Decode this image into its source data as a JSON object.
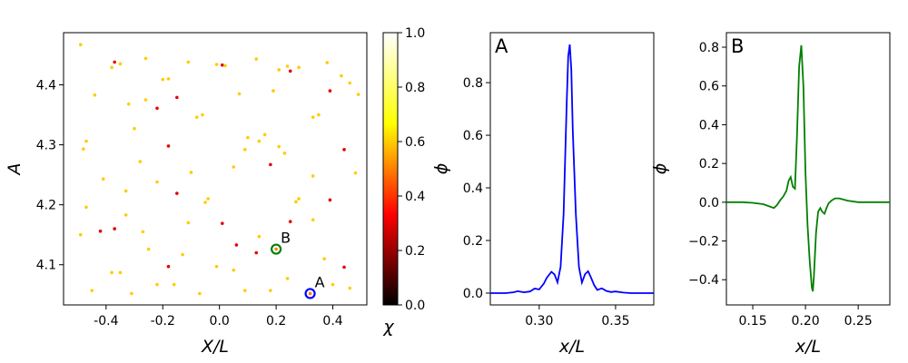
{
  "chart_data": [
    {
      "type": "scatter",
      "xlabel": "X/L",
      "ylabel": "A",
      "xlim": [
        -0.55,
        0.52
      ],
      "ylim": [
        4.033,
        4.487
      ],
      "xticks": [
        "-0.4",
        "-0.2",
        "0.0",
        "0.2",
        "0.4"
      ],
      "xtick_values": [
        -0.4,
        -0.2,
        0.0,
        0.2,
        0.4
      ],
      "yticks": [
        "4.1",
        "4.2",
        "4.3",
        "4.4"
      ],
      "ytick_values": [
        4.1,
        4.2,
        4.3,
        4.4
      ],
      "colorbar": {
        "label": "χ",
        "range": [
          0.0,
          1.0
        ],
        "ticks": [
          "0.0",
          "0.2",
          "0.4",
          "0.6",
          "0.8",
          "1.0"
        ],
        "tick_values": [
          0.0,
          0.2,
          0.4,
          0.6,
          0.8,
          1.0
        ],
        "colormap": "hot",
        "stops": [
          "#000000",
          "#ff0000",
          "#ffff00",
          "#ffffff"
        ]
      },
      "points": [
        [
          -0.49,
          4.467,
          0.6
        ],
        [
          -0.38,
          4.429,
          0.6
        ],
        [
          -0.37,
          4.438,
          0.3
        ],
        [
          -0.35,
          4.435,
          0.6
        ],
        [
          -0.26,
          4.444,
          0.6
        ],
        [
          -0.2,
          4.409,
          0.6
        ],
        [
          -0.18,
          4.41,
          0.6
        ],
        [
          -0.15,
          4.379,
          0.3
        ],
        [
          -0.11,
          4.438,
          0.6
        ],
        [
          -0.01,
          4.434,
          0.6
        ],
        [
          0.01,
          4.433,
          0.3
        ],
        [
          0.02,
          4.432,
          0.6
        ],
        [
          0.13,
          4.443,
          0.6
        ],
        [
          0.21,
          4.425,
          0.6
        ],
        [
          0.24,
          4.431,
          0.6
        ],
        [
          0.25,
          4.423,
          0.3
        ],
        [
          0.28,
          4.429,
          0.6
        ],
        [
          0.38,
          4.437,
          0.6
        ],
        [
          0.43,
          4.415,
          0.6
        ],
        [
          0.46,
          4.403,
          0.6
        ],
        [
          0.49,
          4.384,
          0.6
        ],
        [
          -0.44,
          4.383,
          0.6
        ],
        [
          -0.32,
          4.368,
          0.6
        ],
        [
          -0.26,
          4.375,
          0.6
        ],
        [
          -0.22,
          4.361,
          0.3
        ],
        [
          -0.08,
          4.346,
          0.6
        ],
        [
          -0.06,
          4.35,
          0.6
        ],
        [
          0.07,
          4.385,
          0.6
        ],
        [
          0.19,
          4.39,
          0.6
        ],
        [
          0.33,
          4.346,
          0.6
        ],
        [
          0.35,
          4.35,
          0.6
        ],
        [
          0.39,
          4.39,
          0.3
        ],
        [
          -0.3,
          4.327,
          0.6
        ],
        [
          -0.47,
          4.306,
          0.6
        ],
        [
          -0.48,
          4.293,
          0.6
        ],
        [
          -0.18,
          4.298,
          0.3
        ],
        [
          0.1,
          4.312,
          0.6
        ],
        [
          0.14,
          4.306,
          0.6
        ],
        [
          0.16,
          4.317,
          0.6
        ],
        [
          0.09,
          4.292,
          0.6
        ],
        [
          0.21,
          4.297,
          0.6
        ],
        [
          0.23,
          4.286,
          0.6
        ],
        [
          0.44,
          4.292,
          0.3
        ],
        [
          -0.28,
          4.272,
          0.6
        ],
        [
          0.05,
          4.263,
          0.6
        ],
        [
          0.18,
          4.267,
          0.3
        ],
        [
          0.48,
          4.253,
          0.6
        ],
        [
          -0.1,
          4.254,
          0.6
        ],
        [
          -0.41,
          4.243,
          0.6
        ],
        [
          -0.22,
          4.238,
          0.6
        ],
        [
          0.33,
          4.248,
          0.6
        ],
        [
          -0.33,
          4.223,
          0.6
        ],
        [
          -0.15,
          4.219,
          0.3
        ],
        [
          -0.04,
          4.21,
          0.6
        ],
        [
          -0.05,
          4.204,
          0.6
        ],
        [
          0.27,
          4.205,
          0.6
        ],
        [
          0.28,
          4.21,
          0.6
        ],
        [
          0.39,
          4.208,
          0.3
        ],
        [
          -0.47,
          4.196,
          0.6
        ],
        [
          -0.33,
          4.183,
          0.6
        ],
        [
          -0.11,
          4.17,
          0.6
        ],
        [
          0.01,
          4.169,
          0.3
        ],
        [
          0.25,
          4.172,
          0.3
        ],
        [
          0.33,
          4.175,
          0.6
        ],
        [
          -0.37,
          4.16,
          0.3
        ],
        [
          -0.42,
          4.156,
          0.3
        ],
        [
          -0.49,
          4.15,
          0.6
        ],
        [
          -0.27,
          4.155,
          0.6
        ],
        [
          0.06,
          4.133,
          0.3
        ],
        [
          0.14,
          4.147,
          0.6
        ],
        [
          -0.25,
          4.126,
          0.6
        ],
        [
          -0.13,
          4.117,
          0.6
        ],
        [
          0.13,
          4.12,
          0.3
        ],
        [
          0.37,
          4.11,
          0.6
        ],
        [
          -0.38,
          4.087,
          0.6
        ],
        [
          -0.35,
          4.087,
          0.6
        ],
        [
          -0.18,
          4.097,
          0.3
        ],
        [
          -0.01,
          4.097,
          0.6
        ],
        [
          0.05,
          4.091,
          0.6
        ],
        [
          0.44,
          4.096,
          0.3
        ],
        [
          -0.22,
          4.067,
          0.6
        ],
        [
          -0.16,
          4.067,
          0.6
        ],
        [
          -0.07,
          4.052,
          0.6
        ],
        [
          0.09,
          4.057,
          0.6
        ],
        [
          0.18,
          4.057,
          0.6
        ],
        [
          0.24,
          4.077,
          0.6
        ],
        [
          0.4,
          4.067,
          0.6
        ],
        [
          0.46,
          4.061,
          0.6
        ],
        [
          -0.45,
          4.057,
          0.6
        ],
        [
          -0.31,
          4.052,
          0.6
        ]
      ],
      "highlights": [
        {
          "label": "A",
          "x": 0.32,
          "y": 4.052,
          "color": "#0000ff"
        },
        {
          "label": "B",
          "x": 0.2,
          "y": 4.126,
          "color": "#008000"
        }
      ]
    },
    {
      "type": "line",
      "panel_label": "A",
      "xlabel": "x/L",
      "ylabel": "ϕ",
      "xlim": [
        0.268,
        0.375
      ],
      "ylim": [
        -0.045,
        0.99
      ],
      "xticks": [
        "0.30",
        "0.35"
      ],
      "xtick_values": [
        0.3,
        0.35
      ],
      "yticks": [
        "0.0",
        "0.2",
        "0.4",
        "0.6",
        "0.8"
      ],
      "ytick_values": [
        0.0,
        0.2,
        0.4,
        0.6,
        0.8
      ],
      "color": "#0000ff",
      "x": [
        0.268,
        0.278,
        0.283,
        0.286,
        0.29,
        0.294,
        0.297,
        0.3,
        0.303,
        0.305,
        0.308,
        0.31,
        0.312,
        0.314,
        0.316,
        0.318,
        0.319,
        0.32,
        0.321,
        0.322,
        0.324,
        0.326,
        0.328,
        0.33,
        0.332,
        0.334,
        0.336,
        0.338,
        0.341,
        0.344,
        0.347,
        0.35,
        0.355,
        0.36,
        0.375
      ],
      "y": [
        0.0,
        0.0,
        0.003,
        0.007,
        0.003,
        0.006,
        0.017,
        0.014,
        0.036,
        0.058,
        0.081,
        0.071,
        0.041,
        0.1,
        0.3,
        0.72,
        0.9,
        0.945,
        0.85,
        0.62,
        0.3,
        0.1,
        0.04,
        0.072,
        0.083,
        0.058,
        0.03,
        0.012,
        0.018,
        0.008,
        0.004,
        0.006,
        0.002,
        0.0,
        0.0
      ]
    },
    {
      "type": "line",
      "panel_label": "B",
      "xlabel": "x/L",
      "ylabel": "ϕ",
      "xlim": [
        0.125,
        0.28
      ],
      "ylim": [
        -0.53,
        0.875
      ],
      "xticks": [
        "0.15",
        "0.20",
        "0.25"
      ],
      "xtick_values": [
        0.15,
        0.2,
        0.25
      ],
      "yticks": [
        "−0.4",
        "−0.2",
        "0.0",
        "0.2",
        "0.4",
        "0.6",
        "0.8"
      ],
      "ytick_values": [
        -0.4,
        -0.2,
        0.0,
        0.2,
        0.4,
        0.6,
        0.8
      ],
      "color": "#008000",
      "x": [
        0.125,
        0.14,
        0.15,
        0.16,
        0.165,
        0.17,
        0.173,
        0.176,
        0.179,
        0.182,
        0.184,
        0.186,
        0.188,
        0.19,
        0.192,
        0.194,
        0.196,
        0.198,
        0.2,
        0.202,
        0.204,
        0.206,
        0.207,
        0.208,
        0.21,
        0.212,
        0.214,
        0.216,
        0.218,
        0.22,
        0.222,
        0.225,
        0.228,
        0.232,
        0.24,
        0.25,
        0.28
      ],
      "y": [
        0.0,
        0.0,
        -0.003,
        -0.01,
        -0.02,
        -0.03,
        -0.015,
        0.01,
        0.03,
        0.06,
        0.11,
        0.13,
        0.08,
        0.07,
        0.35,
        0.7,
        0.81,
        0.6,
        0.15,
        -0.12,
        -0.3,
        -0.44,
        -0.46,
        -0.38,
        -0.16,
        -0.05,
        -0.03,
        -0.05,
        -0.06,
        -0.03,
        -0.005,
        0.01,
        0.02,
        0.02,
        0.008,
        0.0,
        0.0
      ]
    }
  ]
}
